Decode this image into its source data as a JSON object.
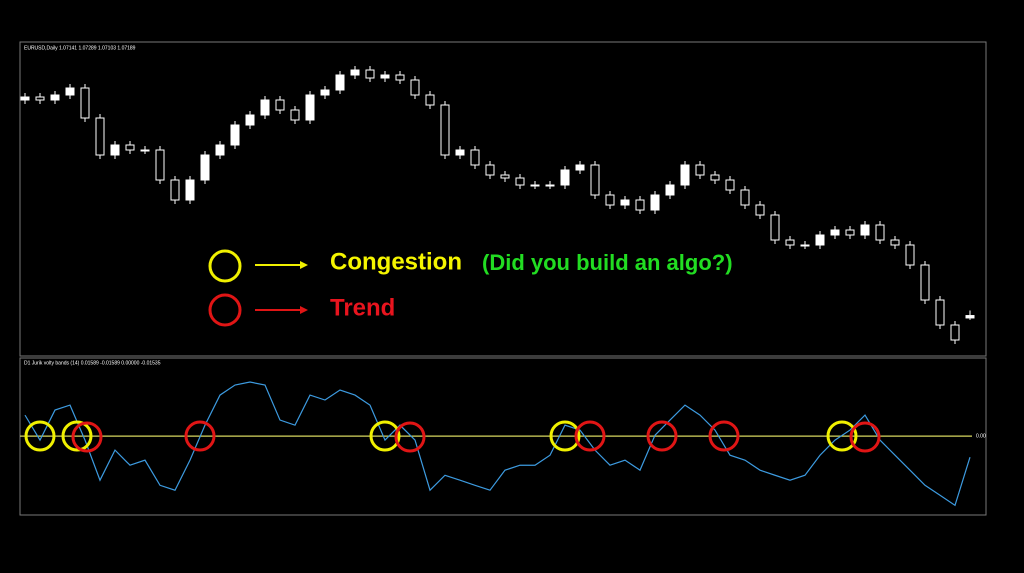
{
  "chart_data": [
    {
      "type": "candlestick",
      "title": "EURUSD,Daily  1.07141 1.07289 1.07103 1.07189",
      "open": [
        1.115,
        1.1156,
        1.115,
        1.116,
        1.1174,
        1.1114,
        1.104,
        1.106,
        1.105,
        1.105,
        1.099,
        1.095,
        1.099,
        1.104,
        1.106,
        1.11,
        1.112,
        1.115,
        1.113,
        1.111,
        1.116,
        1.117,
        1.12,
        1.121,
        1.1194,
        1.12,
        1.119,
        1.116,
        1.114,
        1.104,
        1.105,
        1.102,
        1.1,
        1.0994,
        1.098,
        1.098,
        1.098,
        1.101,
        1.102,
        1.096,
        1.094,
        1.095,
        1.093,
        1.096,
        1.098,
        1.102,
        1.1,
        1.099,
        1.097,
        1.094,
        1.092,
        1.087,
        1.086,
        1.086,
        1.088,
        1.089,
        1.088,
        1.09,
        1.087,
        1.086,
        1.082,
        1.075,
        1.07,
        1.07141
      ],
      "high": [
        1.1164,
        1.1164,
        1.1168,
        1.1182,
        1.1182,
        1.1122,
        1.1068,
        1.1068,
        1.1058,
        1.1058,
        1.0998,
        1.0998,
        1.1048,
        1.1068,
        1.1108,
        1.1128,
        1.1158,
        1.1158,
        1.1138,
        1.1168,
        1.1178,
        1.1208,
        1.1218,
        1.1218,
        1.1208,
        1.1208,
        1.1198,
        1.1168,
        1.1148,
        1.1058,
        1.1058,
        1.1028,
        1.1008,
        1.1002,
        1.0988,
        1.0988,
        1.1018,
        1.1028,
        1.1028,
        1.0968,
        1.0958,
        1.0958,
        1.0968,
        1.0988,
        1.1028,
        1.1028,
        1.1008,
        1.0998,
        1.0978,
        1.0948,
        1.0928,
        1.0878,
        1.0868,
        1.0888,
        1.0898,
        1.0898,
        1.0908,
        1.0908,
        1.0878,
        1.0868,
        1.0828,
        1.0758,
        1.0708,
        1.07289
      ],
      "low": [
        1.1142,
        1.1142,
        1.1142,
        1.1152,
        1.1106,
        1.1032,
        1.1032,
        1.1042,
        1.1042,
        1.0982,
        1.0942,
        1.0942,
        1.0982,
        1.1032,
        1.1052,
        1.1092,
        1.1112,
        1.1122,
        1.1102,
        1.1102,
        1.1152,
        1.1162,
        1.1192,
        1.1186,
        1.1186,
        1.1182,
        1.1152,
        1.1132,
        1.1032,
        1.1032,
        1.1012,
        1.0992,
        1.0986,
        1.0972,
        1.0972,
        1.0972,
        1.0972,
        1.1002,
        1.0952,
        1.0932,
        1.0932,
        1.0922,
        1.0922,
        1.0952,
        1.0972,
        1.0992,
        1.0982,
        1.0962,
        1.0932,
        1.0912,
        1.0862,
        1.0852,
        1.0852,
        1.0852,
        1.0872,
        1.0872,
        1.0872,
        1.0862,
        1.0852,
        1.0812,
        1.0742,
        1.0692,
        1.0662,
        1.07103
      ],
      "close": [
        1.1156,
        1.115,
        1.116,
        1.1174,
        1.1114,
        1.104,
        1.106,
        1.105,
        1.105,
        1.099,
        1.095,
        1.099,
        1.104,
        1.106,
        1.11,
        1.112,
        1.115,
        1.113,
        1.111,
        1.116,
        1.117,
        1.12,
        1.121,
        1.1194,
        1.12,
        1.119,
        1.116,
        1.114,
        1.104,
        1.105,
        1.102,
        1.1,
        1.0994,
        1.098,
        1.098,
        1.098,
        1.101,
        1.102,
        1.096,
        1.094,
        1.095,
        1.093,
        1.096,
        1.098,
        1.102,
        1.1,
        1.099,
        1.097,
        1.094,
        1.092,
        1.087,
        1.086,
        1.086,
        1.088,
        1.089,
        1.088,
        1.09,
        1.087,
        1.086,
        1.082,
        1.075,
        1.07,
        1.067,
        1.07189
      ],
      "ylim": [
        1.064,
        1.126
      ],
      "up_color": "#ffffff",
      "down_color": "#000000",
      "wick_color": "#ffffff"
    },
    {
      "type": "line",
      "title": "D1 Jurik volty bands (14) 0.01589 -0.01589 0.00000 -0.01535",
      "values": [
        0.0153,
        -0.0029,
        0.019,
        0.0226,
        -0.0029,
        -0.0321,
        -0.0102,
        -0.0212,
        -0.0175,
        -0.0358,
        -0.0394,
        -0.0175,
        0.008,
        0.0299,
        0.0372,
        0.0394,
        0.0372,
        0.0117,
        0.008,
        0.0299,
        0.0263,
        0.0336,
        0.0299,
        0.0226,
        -0.0029,
        0.008,
        -0.0029,
        -0.0394,
        -0.0285,
        -0.0321,
        -0.0358,
        -0.0394,
        -0.0248,
        -0.0212,
        -0.0212,
        -0.0139,
        0.008,
        0.0044,
        -0.0102,
        -0.0212,
        -0.0175,
        -0.0248,
        0.0007,
        0.0117,
        0.0226,
        0.0153,
        0.0044,
        -0.0139,
        -0.0175,
        -0.0248,
        -0.0285,
        -0.0321,
        -0.0285,
        -0.0139,
        -0.0029,
        0.0044,
        0.0153,
        -0.0029,
        -0.0139,
        -0.0248,
        -0.0358,
        -0.0431,
        -0.0504,
        -0.01535
      ],
      "color": "#3d9be0",
      "ylim": [
        -0.056,
        0.054
      ],
      "yticks": [
        {
          "value": 0,
          "label": "0.00"
        }
      ],
      "zero_line_color": "#d8d860"
    }
  ],
  "annotations": {
    "congestion": "Congestion",
    "question": "(Did you build an algo?)",
    "trend": "Trend"
  }
}
